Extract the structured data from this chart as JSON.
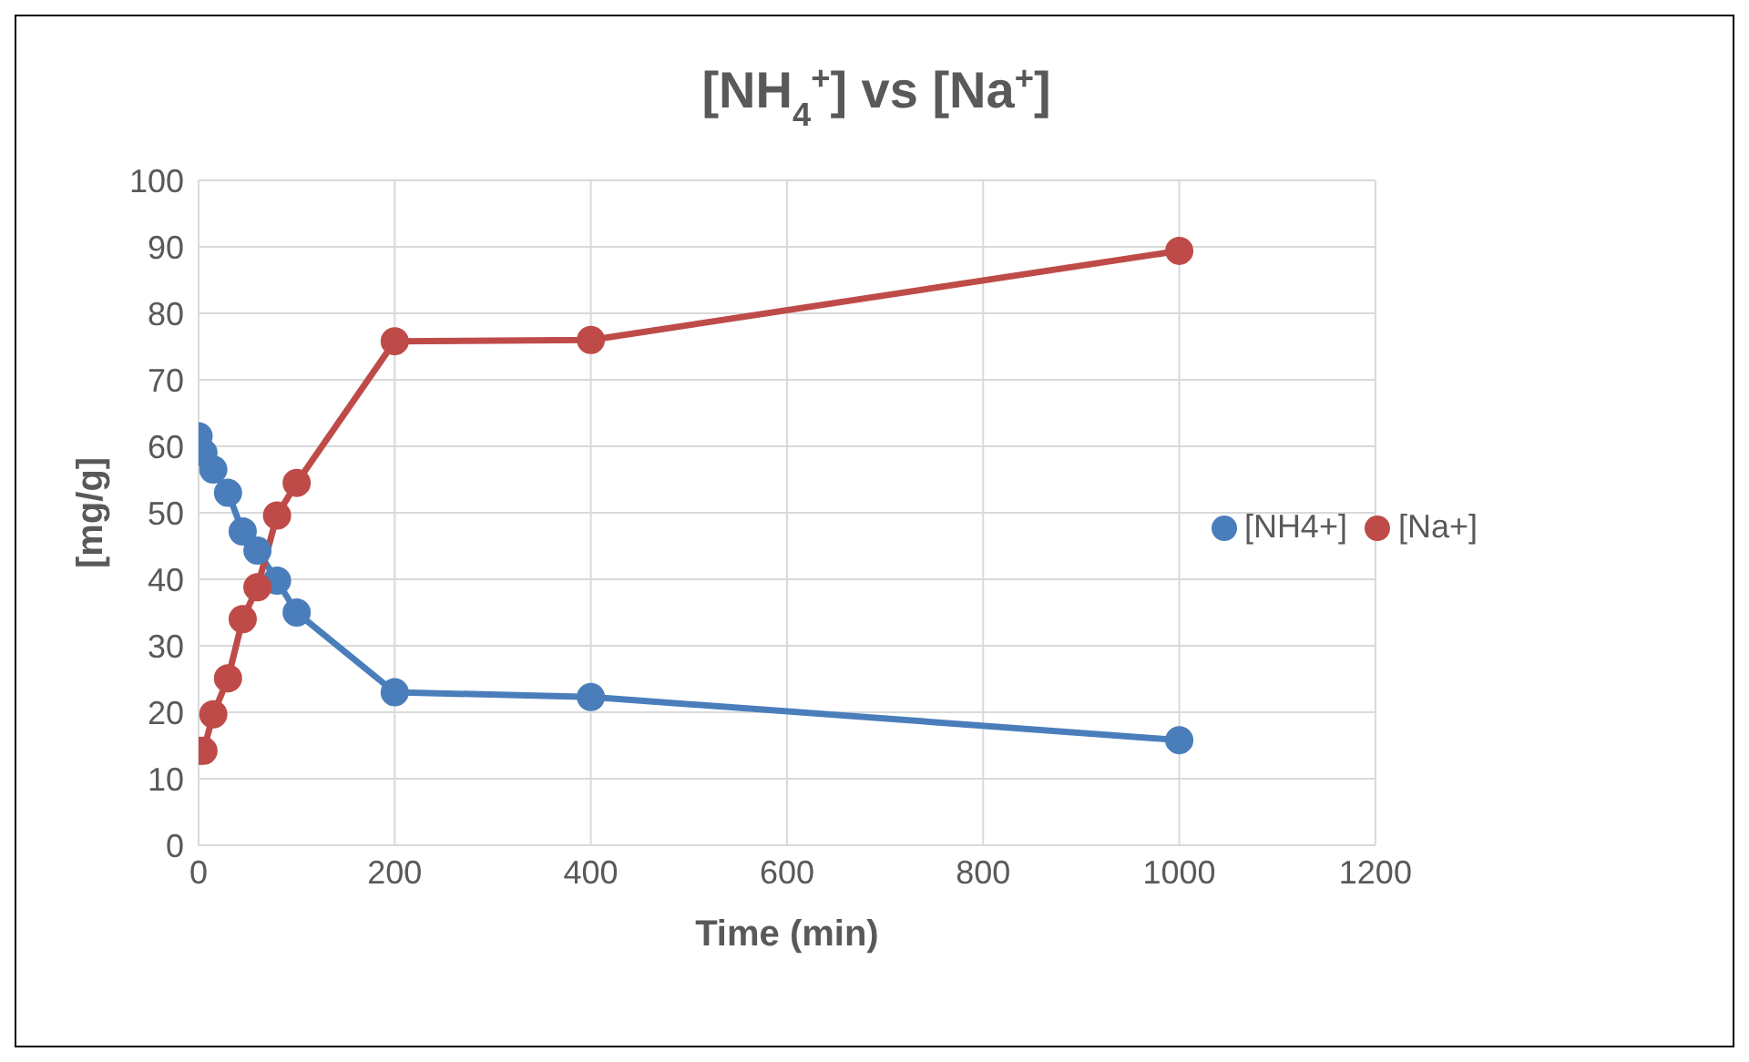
{
  "chart_data": {
    "type": "line",
    "title": "[NH$_{4}$$^{+}$] vs [Na$^{+}$]",
    "xlabel": "Time (min)",
    "ylabel": "[mg/g]",
    "x": [
      0,
      5,
      15,
      30,
      45,
      60,
      80,
      100,
      200,
      400,
      1000
    ],
    "series": [
      {
        "name": "[NH4+]",
        "color": "#4a7ebb",
        "values": [
          61.5,
          59,
          56.5,
          53,
          47.2,
          44.3,
          39.8,
          35,
          23,
          22.3,
          15.8
        ]
      },
      {
        "name": "[Na+]",
        "color": "#be4b48",
        "values": [
          14.2,
          14.2,
          19.7,
          25.1,
          34,
          38.8,
          49.6,
          54.5,
          75.8,
          76,
          89.4
        ]
      }
    ],
    "xlim": [
      0,
      1200
    ],
    "xticks": [
      0,
      200,
      400,
      600,
      800,
      1000,
      1200
    ],
    "ylim": [
      0,
      100
    ],
    "yticks": [
      0,
      10,
      20,
      30,
      40,
      50,
      60,
      70,
      80,
      90,
      100
    ],
    "grid": true,
    "legend": "right",
    "marker": "circle",
    "line_style": "solid"
  }
}
